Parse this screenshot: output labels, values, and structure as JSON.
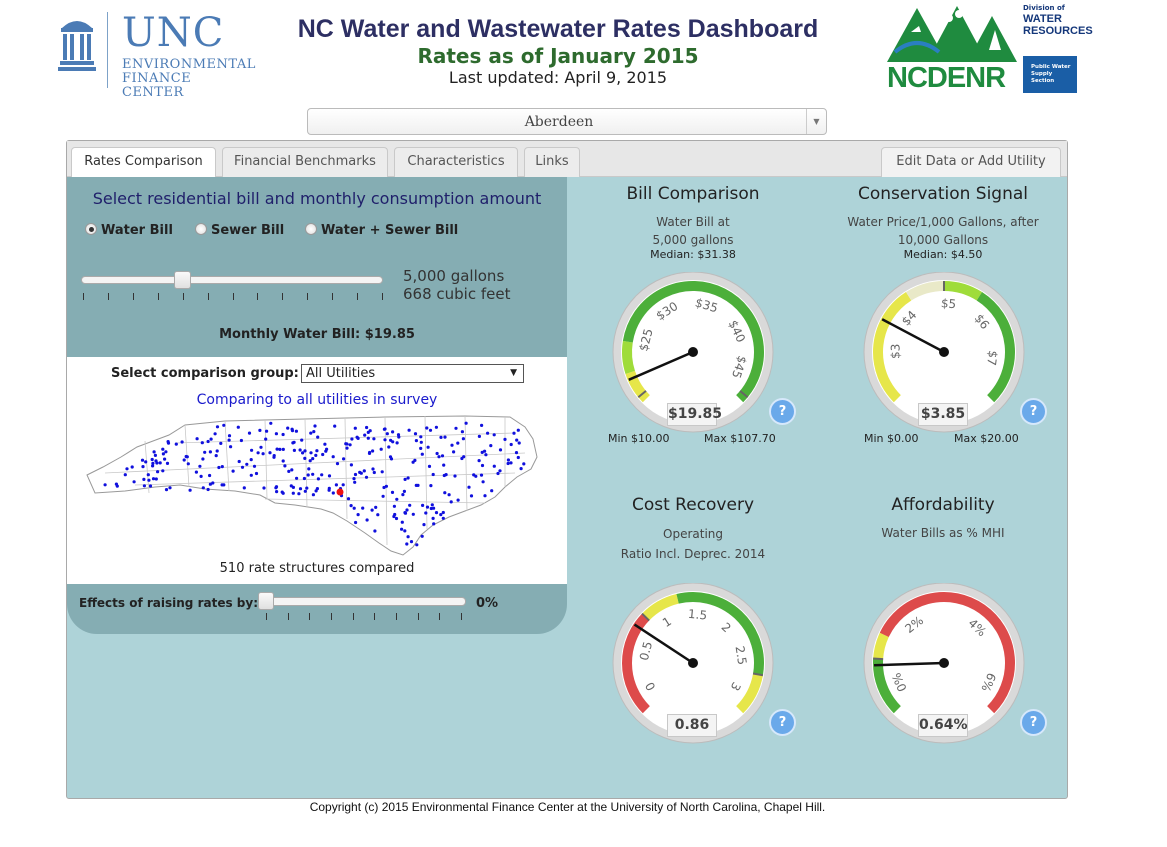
{
  "header": {
    "unc_logo": {
      "big": "UNC",
      "line1": "ENVIRONMENTAL",
      "line2": "FINANCE CENTER"
    },
    "title": "NC Water and Wastewater Rates Dashboard",
    "subtitle": "Rates as of January 2015",
    "updated": "Last updated: April 9, 2015",
    "ncdenr_logo": {
      "word": "NCDENR",
      "division": "Division of",
      "water": "WATER",
      "resources": "RESOURCES",
      "section1": "Public Water",
      "section2": "Supply Section"
    }
  },
  "utility_select": {
    "value": "Aberdeen"
  },
  "tabs": [
    {
      "label": "Rates Comparison",
      "active": true
    },
    {
      "label": "Financial Benchmarks",
      "active": false
    },
    {
      "label": "Characteristics",
      "active": false
    },
    {
      "label": "Links",
      "active": false
    }
  ],
  "edit_button": "Edit Data or Add Utility",
  "left": {
    "heading": "Select residential bill and monthly consumption amount",
    "radios": [
      {
        "label": "Water Bill",
        "selected": true
      },
      {
        "label": "Sewer Bill",
        "selected": false
      },
      {
        "label": "Water + Sewer Bill",
        "selected": false
      }
    ],
    "consumption_gallons": "5,000 gallons",
    "consumption_cubic": "668 cubic feet",
    "monthly_bill": "Monthly Water Bill: $19.85",
    "comparison_label": "Select comparison group:",
    "comparison_value": "All Utilities",
    "comparing_text": "Comparing to all utilities in survey",
    "structures_text": "510 rate structures compared",
    "effects_label": "Effects of raising rates by:",
    "effects_value": "0%"
  },
  "gauges": {
    "bill": {
      "title": "Bill Comparison",
      "sub1": "Water Bill at",
      "sub2": "5,000 gallons",
      "median": "Median: $31.38",
      "ticks": [
        "$25",
        "$30",
        "$35",
        "$40",
        "$45"
      ],
      "value": "$19.85",
      "min": "Min $10.00",
      "max": "Max $107.70",
      "help": "?"
    },
    "conservation": {
      "title": "Conservation Signal",
      "sub1": "Water Price/1,000 Gallons, after",
      "sub2": "10,000 Gallons",
      "median": "Median: $4.50",
      "ticks": [
        "$3",
        "$4",
        "$5",
        "$6",
        "$7"
      ],
      "value": "$3.85",
      "min": "Min $0.00",
      "max": "Max $20.00",
      "help": "?"
    },
    "cost": {
      "title": "Cost Recovery",
      "sub1": "Operating",
      "sub2": "Ratio Incl. Deprec. 2014",
      "ticks": [
        "0",
        "0.5",
        "1",
        "1.5",
        "2",
        "2.5",
        "3"
      ],
      "value": "0.86",
      "help": "?"
    },
    "afford": {
      "title": "Affordability",
      "sub1": "Water Bills as % MHI",
      "ticks": [
        "0%",
        "2%",
        "4%",
        "6%"
      ],
      "value": "0.64%",
      "help": "?"
    }
  },
  "footer": "Copyright (c) 2015 Environmental Finance Center at the University of North Carolina, Chapel Hill.",
  "colors": {
    "panel": "#aed3d8",
    "left_panel": "#85adb3",
    "green": "#4caf3a",
    "yellow": "#e6e64a",
    "red": "#dd4b4b",
    "help": "#6aa9ea",
    "dots": "#1010dd",
    "selected_dot": "#ee1111"
  }
}
